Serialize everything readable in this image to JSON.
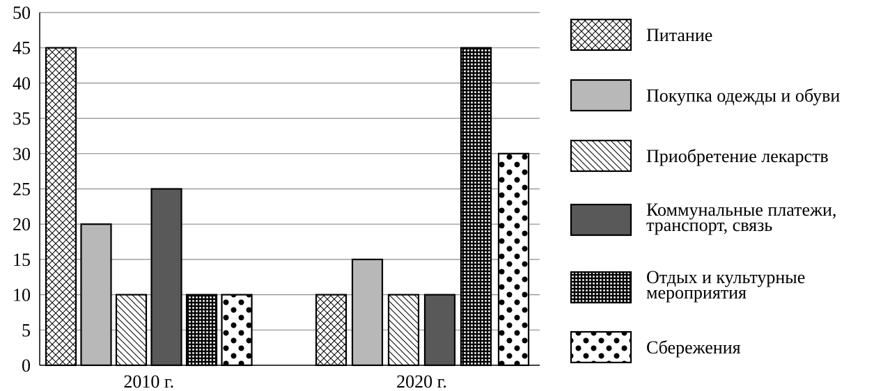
{
  "chart_data": {
    "type": "bar",
    "title": "",
    "xlabel": "",
    "ylabel": "",
    "ylim": [
      0,
      50
    ],
    "yticks": [
      0,
      5,
      10,
      15,
      20,
      25,
      30,
      35,
      40,
      45,
      50
    ],
    "grid": true,
    "legend_position": "right",
    "categories": [
      "2010 г.",
      "2020 г."
    ],
    "series": [
      {
        "name": "Питание",
        "pattern": "crosshatch",
        "values": [
          45,
          10
        ]
      },
      {
        "name": "Покупка одежды и обуви",
        "pattern": "solid-light-gray",
        "values": [
          20,
          15
        ]
      },
      {
        "name": "Приобретение лекарств",
        "pattern": "diagonal-lines",
        "values": [
          10,
          10
        ]
      },
      {
        "name": "Коммунальные платежи, транспорт, связь",
        "pattern": "solid-dark-gray",
        "values": [
          25,
          10
        ]
      },
      {
        "name": "Отдых и культурные мероприятия",
        "pattern": "grid",
        "values": [
          10,
          45
        ]
      },
      {
        "name": "Сбережения",
        "pattern": "dots",
        "values": [
          10,
          30
        ]
      }
    ],
    "colors": {
      "light_gray": "#b8b8b8",
      "dark_gray": "#595959",
      "grid": "#8c8c8c"
    }
  }
}
